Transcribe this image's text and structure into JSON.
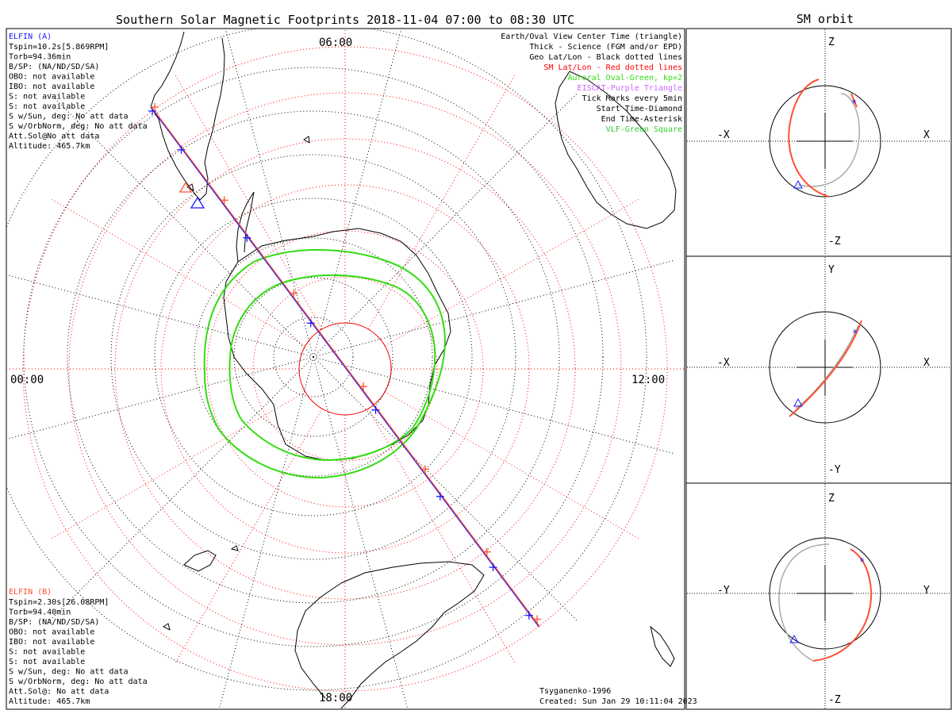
{
  "title": "Southern Solar Magnetic Footprints 2018-11-04 07:00 to 08:30 UTC",
  "orbit_title": "SM orbit",
  "colors": {
    "elfin_a": "#1a1aff",
    "elfin_b": "#ff5030",
    "geo_grid": "#000000",
    "sm_grid": "#ff0000",
    "oval": "#33dd11",
    "eiscat": "#cc66ff",
    "vlf": "#33cc33",
    "orbit_gray": "#aaaaaa",
    "frame": "#000000"
  },
  "elfin_a_info": {
    "name": "ELFIN (A)",
    "lines": [
      "Tspin=10.2s[5.869RPM]",
      "Torb=94.36min",
      "B/SP: (NA/ND/SD/SA)",
      "OBO: not available",
      "IBO: not available",
      "S: not available",
      "S: not available",
      "S w/Sun, deg: No att data",
      "S w/OrbNorm, deg: No att data",
      "Att.Sol@No att data",
      "Altitude: 465.7km"
    ]
  },
  "elfin_b_info": {
    "name": "ELFIN (B)",
    "lines": [
      "Tspin=2.30s[26.08RPM]",
      "Torb=94.40min",
      "B/SP: (NA/ND/SD/SA)",
      "OBO: not available",
      "IBO: not available",
      "S: not available",
      "S: not available",
      "S w/Sun, deg: No att data",
      "S w/OrbNorm, deg: No att data",
      "Att.Sol@: No att data",
      "Altitude: 465.7km"
    ]
  },
  "legend": [
    {
      "text": "Earth/Oval View Center Time (triangle)",
      "color": "#000000"
    },
    {
      "text": "Thick - Science (FGM and/or EPD)",
      "color": "#000000"
    },
    {
      "text": "Geo Lat/Lon - Black dotted lines",
      "color": "#000000"
    },
    {
      "text": "SM Lat/Lon - Red dotted lines",
      "color": "#ff0000"
    },
    {
      "text": "Auroral Oval-Green, kp=2",
      "color": "#33dd11"
    },
    {
      "text": "EISCAT-Purple Triangle",
      "color": "#cc66ff"
    },
    {
      "text": "Tick Marks every 5min",
      "color": "#000000"
    },
    {
      "text": "Start Time-Diamond",
      "color": "#000000"
    },
    {
      "text": "End Time-Asterisk",
      "color": "#000000"
    },
    {
      "text": "VLF-Green Square",
      "color": "#33cc33"
    }
  ],
  "mlt_labels": {
    "top": "06:00",
    "left": "00:00",
    "right": "12:00",
    "bottom": "18:00"
  },
  "footer": {
    "model": "Tsyganenko-1996",
    "created": "Created: Sun Jan 29 10:11:04 2023"
  },
  "orbit_panels": [
    {
      "h_neg": "-X",
      "h_pos": "X",
      "v_pos": "Z",
      "v_neg": "-Z"
    },
    {
      "h_neg": "-X",
      "h_pos": "X",
      "v_pos": "Y",
      "v_neg": "-Y"
    },
    {
      "h_neg": "-Y",
      "h_pos": "Y",
      "v_pos": "Z",
      "v_neg": "-Z"
    }
  ],
  "chart_data": {
    "type": "scatter",
    "title": "Southern Solar Magnetic Footprints 2018-11-04 07:00 to 08:30 UTC",
    "projection": "south polar, MLT clock angle",
    "mlt_axis": [
      "00:00",
      "06:00",
      "12:00",
      "18:00"
    ],
    "tick_interval_min": 5,
    "auroral_oval_kp": 2,
    "series": [
      {
        "name": "ELFIN (A)",
        "color": "#1a1aff"
      },
      {
        "name": "ELFIN (B)",
        "color": "#ff5030"
      }
    ]
  }
}
